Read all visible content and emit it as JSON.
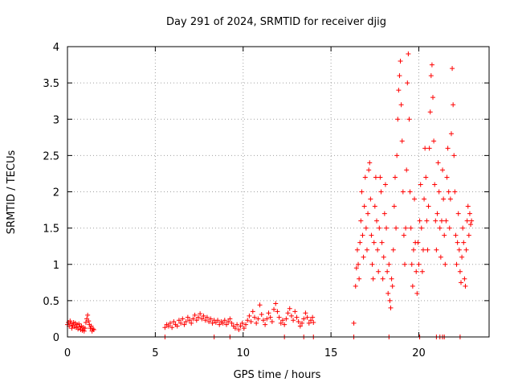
{
  "chart_data": {
    "type": "scatter",
    "title": "Day 291 of 2024, SRMTID for receiver djig",
    "xlabel": "GPS time / hours",
    "ylabel": "SRMTID / TECUs",
    "xlim": [
      0,
      24
    ],
    "ylim": [
      0,
      4
    ],
    "xticks": [
      0,
      5,
      10,
      15,
      20
    ],
    "yticks": [
      0,
      0.5,
      1,
      1.5,
      2,
      2.5,
      3,
      3.5,
      4
    ],
    "xtick_labels": [
      "0",
      "5",
      "10",
      "15",
      "20"
    ],
    "ytick_labels": [
      "0",
      "0.5",
      "1",
      "1.5",
      "2",
      "2.5",
      "3",
      "3.5",
      "4"
    ],
    "grid": true,
    "marker": "+",
    "color": "#ff0000",
    "series": [
      {
        "name": "djig",
        "points": [
          [
            0.0,
            0.17
          ],
          [
            0.05,
            0.2
          ],
          [
            0.1,
            0.15
          ],
          [
            0.15,
            0.22
          ],
          [
            0.2,
            0.18
          ],
          [
            0.25,
            0.12
          ],
          [
            0.3,
            0.16
          ],
          [
            0.35,
            0.2
          ],
          [
            0.4,
            0.14
          ],
          [
            0.45,
            0.19
          ],
          [
            0.5,
            0.13
          ],
          [
            0.55,
            0.17
          ],
          [
            0.6,
            0.11
          ],
          [
            0.65,
            0.18
          ],
          [
            0.7,
            0.14
          ],
          [
            0.75,
            0.1
          ],
          [
            0.8,
            0.15
          ],
          [
            0.85,
            0.09
          ],
          [
            0.9,
            0.13
          ],
          [
            0.95,
            0.08
          ],
          [
            1.0,
            0.12
          ],
          [
            1.05,
            0.2
          ],
          [
            1.1,
            0.25
          ],
          [
            1.15,
            0.3
          ],
          [
            1.2,
            0.22
          ],
          [
            1.25,
            0.17
          ],
          [
            1.3,
            0.12
          ],
          [
            1.35,
            0.15
          ],
          [
            1.4,
            0.08
          ],
          [
            1.45,
            0.11
          ],
          [
            1.5,
            0.1
          ],
          [
            5.55,
            0.13
          ],
          [
            5.65,
            0.17
          ],
          [
            5.75,
            0.15
          ],
          [
            5.85,
            0.19
          ],
          [
            5.95,
            0.13
          ],
          [
            6.05,
            0.21
          ],
          [
            6.15,
            0.17
          ],
          [
            6.25,
            0.15
          ],
          [
            6.35,
            0.23
          ],
          [
            6.45,
            0.19
          ],
          [
            6.55,
            0.25
          ],
          [
            6.65,
            0.17
          ],
          [
            6.75,
            0.21
          ],
          [
            6.85,
            0.27
          ],
          [
            6.95,
            0.23
          ],
          [
            7.05,
            0.19
          ],
          [
            7.15,
            0.25
          ],
          [
            7.25,
            0.3
          ],
          [
            7.35,
            0.23
          ],
          [
            7.45,
            0.27
          ],
          [
            7.55,
            0.32
          ],
          [
            7.65,
            0.25
          ],
          [
            7.75,
            0.29
          ],
          [
            7.85,
            0.23
          ],
          [
            7.95,
            0.27
          ],
          [
            8.05,
            0.21
          ],
          [
            8.15,
            0.25
          ],
          [
            8.25,
            0.19
          ],
          [
            8.35,
            0.23
          ],
          [
            8.45,
            0.2
          ],
          [
            8.55,
            0.23
          ],
          [
            8.65,
            0.17
          ],
          [
            8.75,
            0.21
          ],
          [
            8.85,
            0.19
          ],
          [
            8.95,
            0.23
          ],
          [
            9.05,
            0.17
          ],
          [
            9.15,
            0.21
          ],
          [
            9.25,
            0.25
          ],
          [
            9.35,
            0.19
          ],
          [
            9.45,
            0.15
          ],
          [
            9.55,
            0.12
          ],
          [
            9.65,
            0.17
          ],
          [
            9.75,
            0.1
          ],
          [
            9.85,
            0.15
          ],
          [
            9.95,
            0.19
          ],
          [
            10.05,
            0.12
          ],
          [
            10.15,
            0.17
          ],
          [
            10.25,
            0.23
          ],
          [
            10.35,
            0.29
          ],
          [
            10.45,
            0.21
          ],
          [
            10.55,
            0.35
          ],
          [
            10.65,
            0.27
          ],
          [
            10.75,
            0.19
          ],
          [
            10.85,
            0.25
          ],
          [
            10.95,
            0.44
          ],
          [
            11.05,
            0.31
          ],
          [
            11.15,
            0.23
          ],
          [
            11.25,
            0.17
          ],
          [
            11.35,
            0.25
          ],
          [
            11.45,
            0.33
          ],
          [
            11.55,
            0.27
          ],
          [
            11.65,
            0.21
          ],
          [
            11.75,
            0.38
          ],
          [
            11.85,
            0.46
          ],
          [
            11.95,
            0.35
          ],
          [
            12.05,
            0.27
          ],
          [
            12.15,
            0.19
          ],
          [
            12.25,
            0.23
          ],
          [
            12.35,
            0.17
          ],
          [
            12.45,
            0.25
          ],
          [
            12.55,
            0.33
          ],
          [
            12.65,
            0.39
          ],
          [
            12.75,
            0.29
          ],
          [
            12.85,
            0.23
          ],
          [
            12.95,
            0.35
          ],
          [
            13.05,
            0.27
          ],
          [
            13.15,
            0.21
          ],
          [
            13.25,
            0.15
          ],
          [
            13.35,
            0.19
          ],
          [
            13.45,
            0.25
          ],
          [
            13.55,
            0.33
          ],
          [
            13.65,
            0.27
          ],
          [
            13.75,
            0.19
          ],
          [
            13.85,
            0.23
          ],
          [
            13.95,
            0.27
          ],
          [
            14.0,
            0.2
          ],
          [
            16.3,
            0.19
          ],
          [
            16.4,
            0.7
          ],
          [
            16.45,
            0.95
          ],
          [
            16.5,
            1.2
          ],
          [
            16.55,
            1.0
          ],
          [
            16.6,
            0.8
          ],
          [
            16.65,
            1.3
          ],
          [
            16.7,
            1.6
          ],
          [
            16.75,
            2.0
          ],
          [
            16.8,
            1.4
          ],
          [
            16.85,
            1.1
          ],
          [
            16.9,
            1.8
          ],
          [
            16.95,
            2.2
          ],
          [
            17.0,
            1.5
          ],
          [
            17.05,
            1.2
          ],
          [
            17.1,
            1.7
          ],
          [
            17.15,
            2.3
          ],
          [
            17.2,
            2.4
          ],
          [
            17.25,
            1.9
          ],
          [
            17.3,
            1.4
          ],
          [
            17.35,
            1.0
          ],
          [
            17.4,
            0.8
          ],
          [
            17.45,
            1.3
          ],
          [
            17.5,
            1.8
          ],
          [
            17.55,
            2.2
          ],
          [
            17.6,
            1.6
          ],
          [
            17.65,
            1.2
          ],
          [
            17.7,
            0.9
          ],
          [
            17.75,
            1.5
          ],
          [
            17.8,
            2.2
          ],
          [
            17.85,
            2.0
          ],
          [
            17.9,
            1.3
          ],
          [
            17.95,
            0.8
          ],
          [
            18.0,
            1.1
          ],
          [
            18.05,
            1.7
          ],
          [
            18.1,
            2.1
          ],
          [
            18.15,
            1.5
          ],
          [
            18.2,
            0.9
          ],
          [
            18.25,
            0.6
          ],
          [
            18.3,
            1.0
          ],
          [
            18.35,
            0.5
          ],
          [
            18.4,
            0.4
          ],
          [
            18.45,
            0.8
          ],
          [
            18.5,
            0.7
          ],
          [
            18.55,
            1.2
          ],
          [
            18.6,
            1.8
          ],
          [
            18.65,
            2.2
          ],
          [
            18.7,
            1.5
          ],
          [
            18.75,
            2.5
          ],
          [
            18.8,
            3.0
          ],
          [
            18.85,
            3.4
          ],
          [
            18.9,
            3.6
          ],
          [
            18.95,
            3.8
          ],
          [
            19.0,
            3.2
          ],
          [
            19.05,
            2.7
          ],
          [
            19.1,
            2.0
          ],
          [
            19.15,
            1.4
          ],
          [
            19.2,
            1.0
          ],
          [
            19.25,
            1.5
          ],
          [
            19.3,
            2.3
          ],
          [
            19.35,
            3.5
          ],
          [
            19.4,
            3.9
          ],
          [
            19.45,
            3.0
          ],
          [
            19.5,
            2.0
          ],
          [
            19.55,
            1.5
          ],
          [
            19.6,
            1.0
          ],
          [
            19.65,
            0.7
          ],
          [
            19.7,
            1.2
          ],
          [
            19.75,
            1.9
          ],
          [
            19.8,
            1.3
          ],
          [
            19.85,
            0.9
          ],
          [
            19.9,
            0.6
          ],
          [
            19.95,
            1.3
          ],
          [
            20.0,
            1.0
          ],
          [
            20.05,
            1.6
          ],
          [
            20.1,
            2.1
          ],
          [
            20.15,
            1.5
          ],
          [
            20.2,
            0.9
          ],
          [
            20.25,
            1.2
          ],
          [
            20.3,
            1.9
          ],
          [
            20.35,
            2.6
          ],
          [
            20.4,
            2.2
          ],
          [
            20.45,
            1.6
          ],
          [
            20.5,
            1.2
          ],
          [
            20.55,
            1.8
          ],
          [
            20.6,
            2.6
          ],
          [
            20.65,
            3.1
          ],
          [
            20.7,
            3.6
          ],
          [
            20.75,
            3.75
          ],
          [
            20.8,
            3.3
          ],
          [
            20.85,
            2.7
          ],
          [
            20.9,
            2.1
          ],
          [
            20.95,
            1.6
          ],
          [
            21.0,
            1.2
          ],
          [
            21.05,
            1.7
          ],
          [
            21.1,
            2.4
          ],
          [
            21.15,
            2.0
          ],
          [
            21.2,
            1.5
          ],
          [
            21.25,
            1.1
          ],
          [
            21.3,
            1.6
          ],
          [
            21.35,
            2.3
          ],
          [
            21.4,
            1.9
          ],
          [
            21.45,
            1.4
          ],
          [
            21.5,
            1.0
          ],
          [
            21.55,
            1.6
          ],
          [
            21.6,
            2.2
          ],
          [
            21.65,
            2.6
          ],
          [
            21.7,
            2.0
          ],
          [
            21.75,
            1.5
          ],
          [
            21.8,
            1.9
          ],
          [
            21.85,
            2.8
          ],
          [
            21.9,
            3.7
          ],
          [
            21.95,
            3.2
          ],
          [
            22.0,
            2.5
          ],
          [
            22.05,
            2.0
          ],
          [
            22.1,
            1.4
          ],
          [
            22.15,
            1.0
          ],
          [
            22.2,
            1.3
          ],
          [
            22.25,
            1.7
          ],
          [
            22.3,
            1.2
          ],
          [
            22.35,
            0.9
          ],
          [
            22.4,
            0.75
          ],
          [
            22.45,
            1.1
          ],
          [
            22.5,
            1.5
          ],
          [
            22.55,
            1.3
          ],
          [
            22.6,
            0.8
          ],
          [
            22.65,
            0.7
          ],
          [
            22.7,
            1.2
          ],
          [
            22.75,
            1.6
          ],
          [
            22.8,
            1.8
          ],
          [
            22.85,
            1.4
          ],
          [
            22.9,
            1.7
          ],
          [
            22.95,
            1.55
          ],
          [
            23.0,
            1.6
          ],
          [
            5.55,
            0.0
          ],
          [
            8.35,
            0.0
          ],
          [
            9.25,
            0.0
          ],
          [
            12.35,
            0.0
          ],
          [
            13.45,
            0.0
          ],
          [
            14.0,
            0.0
          ],
          [
            16.3,
            0.0
          ],
          [
            18.3,
            0.0
          ],
          [
            20.05,
            0.0
          ],
          [
            21.0,
            0.0
          ],
          [
            21.2,
            0.0
          ],
          [
            21.35,
            0.0
          ],
          [
            21.45,
            0.0
          ],
          [
            22.35,
            0.0
          ]
        ]
      }
    ]
  }
}
